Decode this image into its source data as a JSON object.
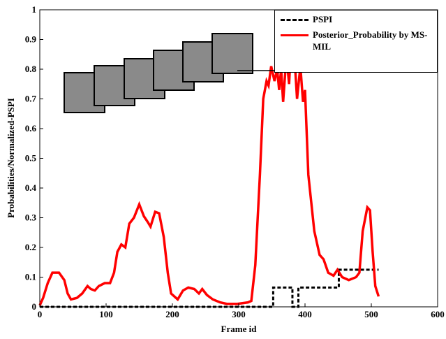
{
  "chart_data": {
    "type": "line",
    "xlabel": "Frame id",
    "ylabel": "Probabilities/Normalized-PSPI",
    "xlim": [
      0,
      600
    ],
    "xticks": [
      0,
      100,
      200,
      300,
      400,
      500,
      600
    ],
    "ylim": [
      0,
      1
    ],
    "yticks": [
      0,
      0.1,
      0.2,
      0.3,
      0.4,
      0.5,
      0.6,
      0.7,
      0.8,
      0.9,
      1
    ],
    "legend": "upper right",
    "series": [
      {
        "name": "PSPI",
        "color": "#000000",
        "dashed": true,
        "x": [
          0,
          352,
          352,
          381,
          381,
          390,
          390,
          451,
          451,
          511
        ],
        "values": [
          0,
          0,
          0.065,
          0.065,
          0,
          0,
          0.065,
          0.065,
          0.125,
          0.125
        ]
      },
      {
        "name": "Posterior_Probability by MS-MIL",
        "color": "#ff0000",
        "dashed": false,
        "x": [
          0,
          5,
          12,
          19,
          29,
          37,
          42,
          47,
          56,
          64,
          72,
          77,
          83,
          89,
          98,
          106,
          112,
          117,
          123,
          129,
          135,
          142,
          150,
          157,
          163,
          167,
          174,
          180,
          187,
          193,
          198,
          208,
          216,
          224,
          233,
          240,
          245,
          252,
          261,
          272,
          282,
          298,
          314,
          319,
          325,
          332,
          337,
          342,
          345,
          349,
          354,
          358,
          361,
          364,
          367,
          372,
          376,
          380,
          384,
          388,
          393,
          397,
          400,
          405,
          414,
          422,
          428,
          435,
          443,
          449,
          456,
          466,
          477,
          482,
          487,
          494,
          498,
          502,
          506,
          511
        ],
        "values": [
          0.005,
          0.03,
          0.08,
          0.115,
          0.115,
          0.09,
          0.045,
          0.025,
          0.03,
          0.045,
          0.07,
          0.06,
          0.055,
          0.07,
          0.08,
          0.08,
          0.115,
          0.185,
          0.21,
          0.2,
          0.28,
          0.3,
          0.345,
          0.305,
          0.285,
          0.27,
          0.32,
          0.315,
          0.235,
          0.115,
          0.045,
          0.025,
          0.055,
          0.065,
          0.06,
          0.045,
          0.06,
          0.04,
          0.025,
          0.015,
          0.01,
          0.01,
          0.015,
          0.02,
          0.14,
          0.445,
          0.7,
          0.76,
          0.745,
          0.81,
          0.76,
          0.8,
          0.73,
          0.8,
          0.69,
          0.845,
          0.75,
          0.925,
          0.845,
          0.7,
          0.81,
          0.69,
          0.73,
          0.445,
          0.255,
          0.175,
          0.16,
          0.115,
          0.105,
          0.125,
          0.1,
          0.09,
          0.1,
          0.115,
          0.255,
          0.335,
          0.325,
          0.185,
          0.07,
          0.035
        ]
      }
    ]
  }
}
